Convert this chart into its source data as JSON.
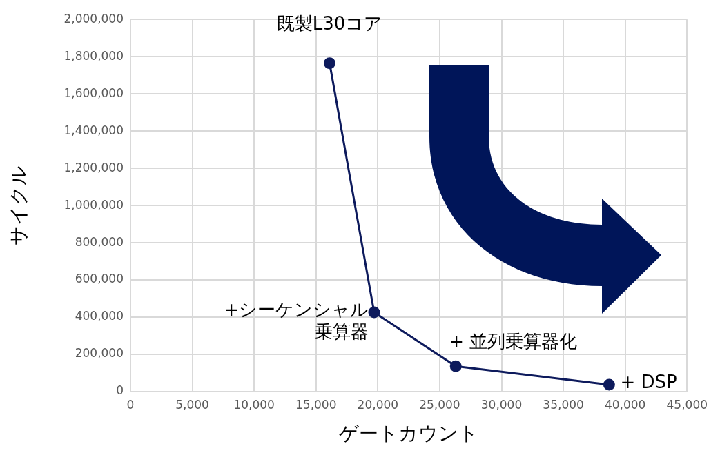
{
  "chart_data": {
    "type": "line",
    "xlabel": "ゲートカウント",
    "ylabel": "サイクル",
    "x": [
      16100,
      19700,
      26300,
      38700
    ],
    "series": [
      {
        "color": "#0d1a5c",
        "values": [
          1765000,
          426000,
          136000,
          37000
        ]
      }
    ],
    "xlim": [
      0,
      45000
    ],
    "xticks": [
      0,
      {
        "value": 5000,
        "label": "5,000"
      },
      {
        "value": 10000,
        "label": "10,000"
      },
      {
        "value": 15000,
        "label": "15,000"
      },
      {
        "value": 20000,
        "label": "20,000"
      },
      {
        "value": 25000,
        "label": "25,000"
      },
      {
        "value": 30000,
        "label": "30,000"
      },
      {
        "value": 35000,
        "label": "35,000"
      },
      {
        "value": 40000,
        "label": "40,000"
      },
      {
        "value": 45000,
        "label": "45,000"
      }
    ],
    "ylim": [
      0,
      2000000
    ],
    "yticks": [
      0,
      {
        "value": 200000,
        "label": "200,000"
      },
      {
        "value": 400000,
        "label": "400,000"
      },
      {
        "value": 600000,
        "label": "600,000"
      },
      {
        "value": 800000,
        "label": "800,000"
      },
      {
        "value": 1000000,
        "label": "1,000,000"
      },
      {
        "value": 1200000,
        "label": "1,200,000"
      },
      {
        "value": 1400000,
        "label": "1,400,000"
      },
      {
        "value": 1600000,
        "label": "1,600,000"
      },
      {
        "value": 1800000,
        "label": "1,800,000"
      },
      {
        "value": 2000000,
        "label": "2,000,000"
      }
    ],
    "grid": true,
    "marker": "circle",
    "line_style": "solid",
    "annotations": [
      {
        "text": "既製L30コア",
        "x": 16100,
        "y": 1765000
      },
      {
        "text": "+シーケンシャル乗算器",
        "x": 19700,
        "y": 426000
      },
      {
        "text": "+ 並列乗算器化",
        "x": 26300,
        "y": 136000
      },
      {
        "text": "+ DSP",
        "x": 38700,
        "y": 37000
      }
    ]
  }
}
